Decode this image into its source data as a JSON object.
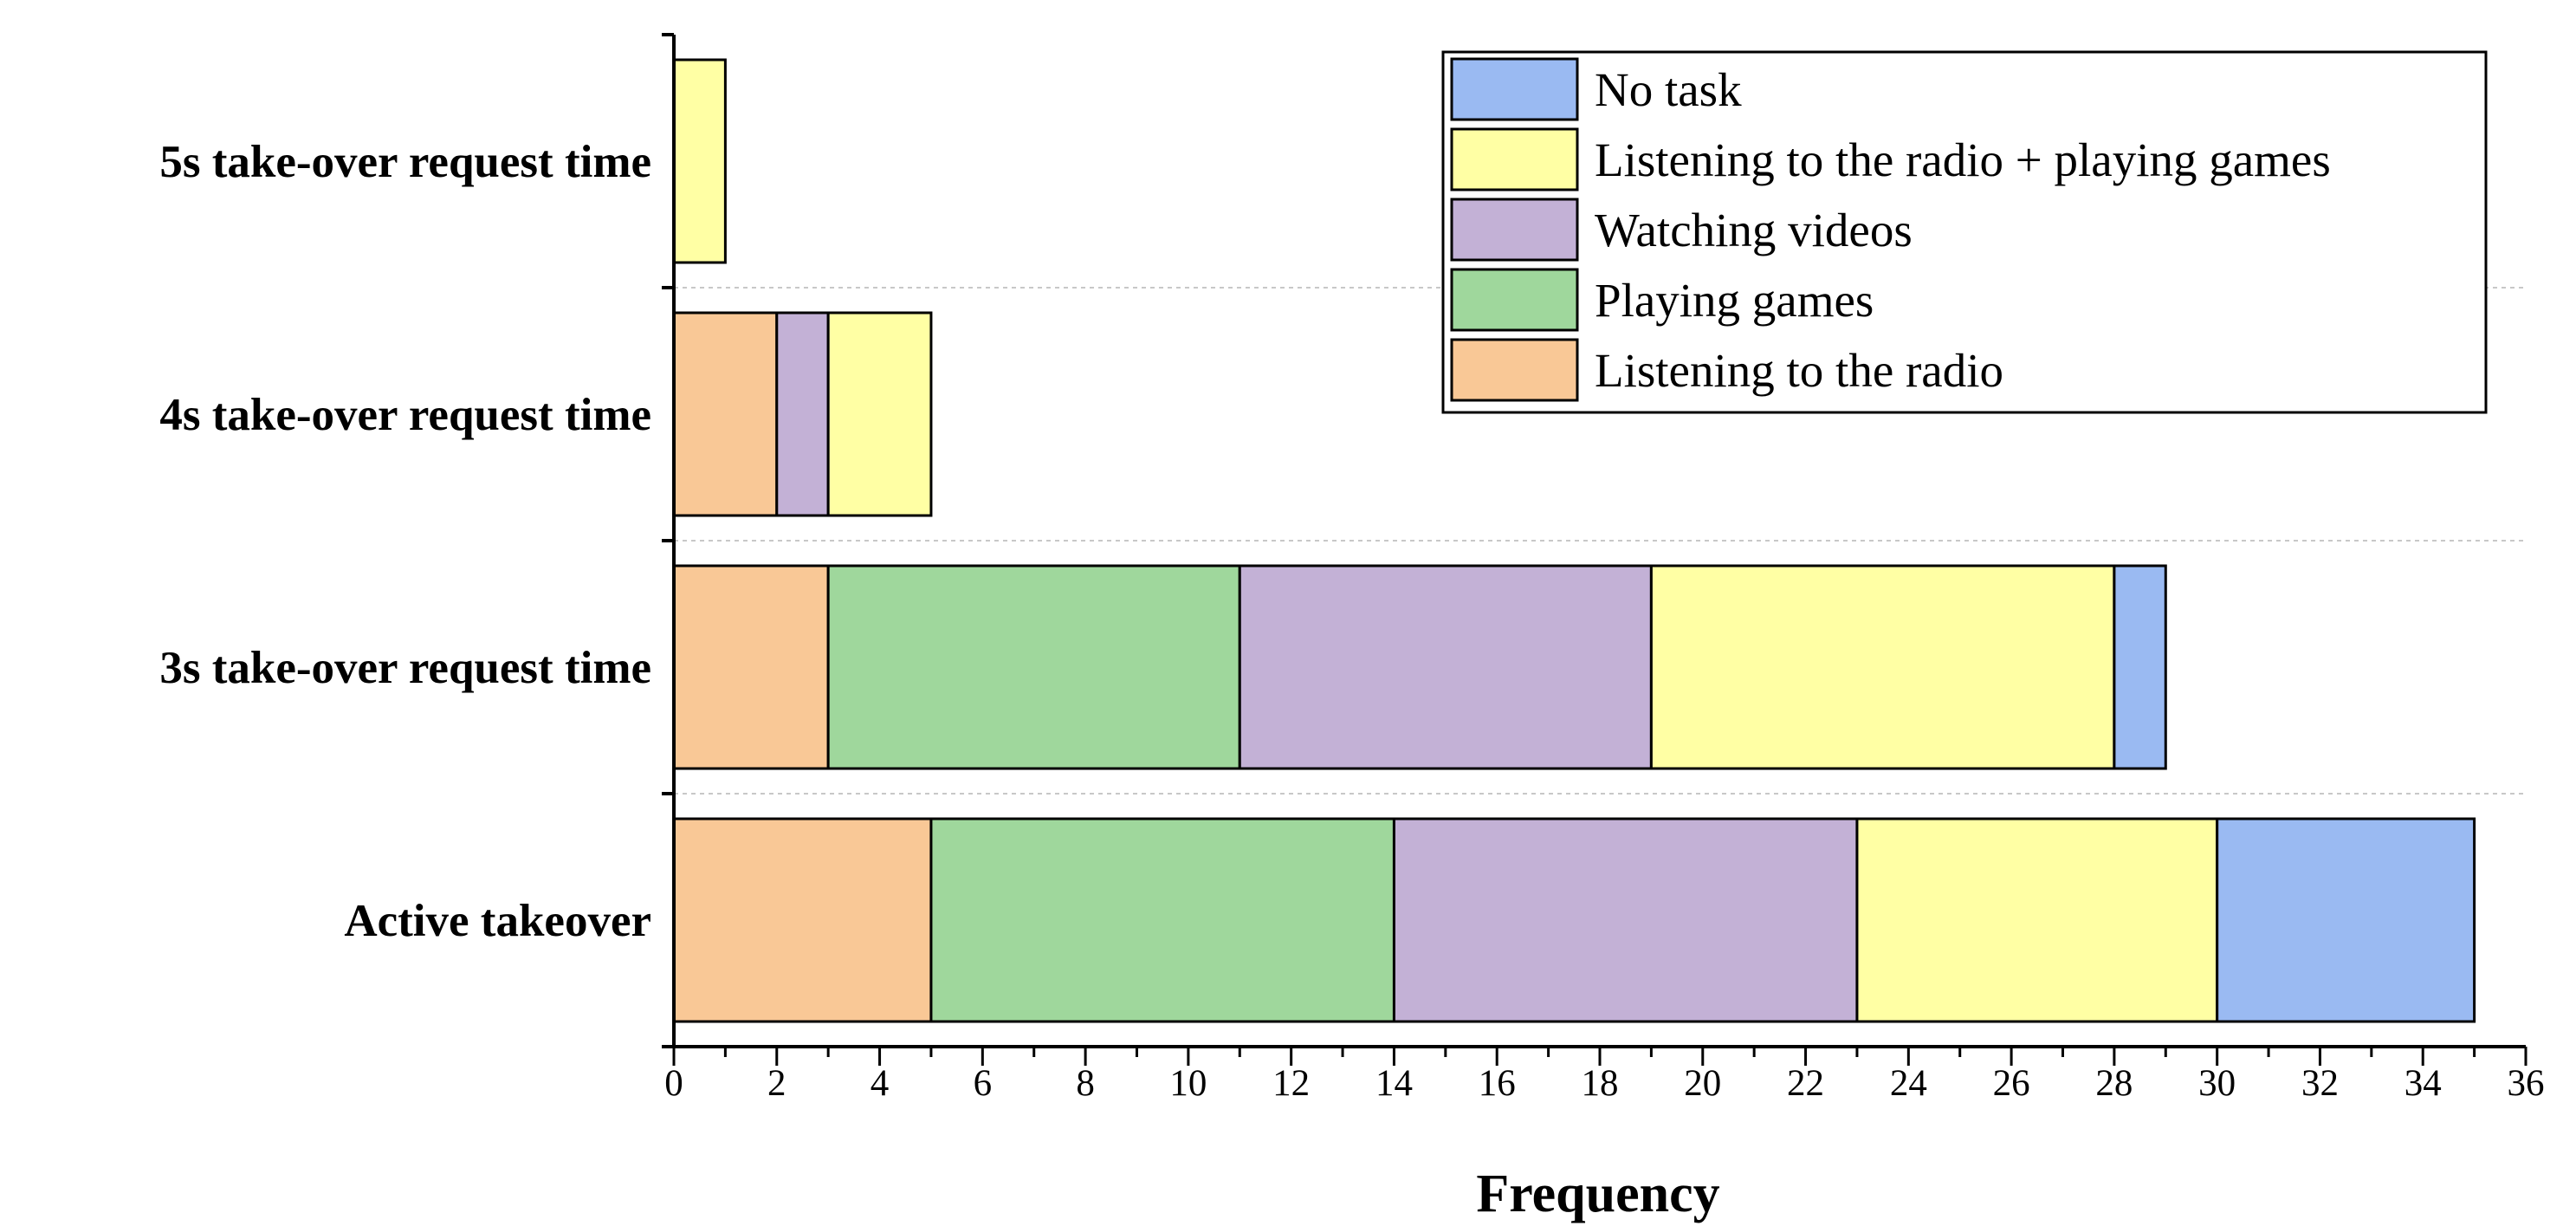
{
  "chart_data": {
    "type": "bar",
    "orientation": "horizontal",
    "stacked": true,
    "categories": [
      "Active takeover",
      "3s take-over request time",
      "4s take-over request time",
      "5s take-over request time"
    ],
    "series": [
      {
        "name": "Listening to the radio",
        "color": "#F9C896",
        "values": [
          5,
          3,
          2,
          0
        ]
      },
      {
        "name": "Playing games",
        "color": "#9FD79C",
        "values": [
          9,
          8,
          0,
          0
        ]
      },
      {
        "name": "Watching videos",
        "color": "#C3B1D6",
        "values": [
          9,
          8,
          1,
          0
        ]
      },
      {
        "name": "Listening to the radio + playing games",
        "color": "#FFFFA4",
        "values": [
          7,
          9,
          2,
          1
        ]
      },
      {
        "name": "No task",
        "color": "#9ABAF2",
        "values": [
          5,
          1,
          0,
          0
        ]
      }
    ],
    "legend_order": [
      "No task",
      "Listening to the radio + playing games",
      "Watching videos",
      "Playing games",
      "Listening to the radio"
    ],
    "xlabel": "Frequency",
    "ylabel": "",
    "xlim": [
      0,
      36
    ],
    "x_major_ticks": [
      0,
      2,
      4,
      6,
      8,
      10,
      12,
      14,
      16,
      18,
      20,
      22,
      24,
      26,
      28,
      30,
      32,
      34,
      36
    ],
    "grid": "dashed horizontal separators between categories",
    "legend_position": "top-right"
  }
}
